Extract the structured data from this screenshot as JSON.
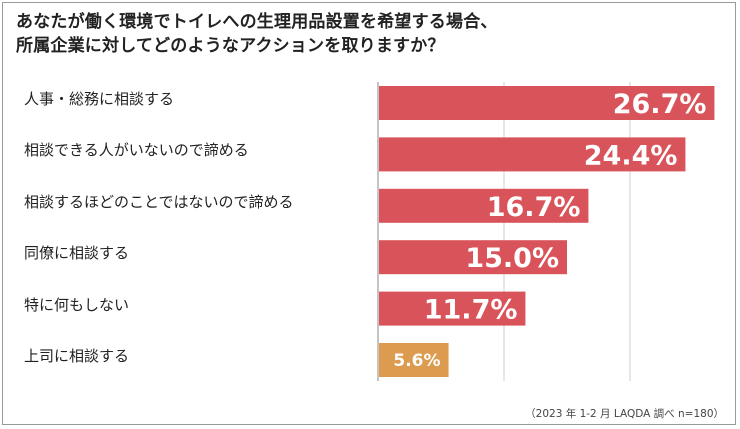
{
  "title": "あなたが働く環境でトイレへの生理用品設置を希望する場合、\n所属企業に対してどのようなアクションを取りますか？",
  "source": "（2023 年 1-2 月 LAQDA 調べ n=180）",
  "colors": {
    "main_bar": "#d9545a",
    "highlight_bar": "#dd9b4f",
    "grid": "#cfcfcf",
    "axis": "#8a8a8a",
    "value_text": "#ffffff"
  },
  "chart_data": {
    "type": "bar",
    "orientation": "horizontal",
    "categories": [
      "人事・総務に相談する",
      "相談できる人がいないので諦める",
      "相談するほどのことではないので諦める",
      "同僚に相談する",
      "特に何もしない",
      "上司に相談する"
    ],
    "values": [
      26.7,
      24.4,
      16.7,
      15.0,
      11.7,
      5.6
    ],
    "value_labels": [
      "26.7%",
      "24.4%",
      "16.7%",
      "15.0%",
      "11.7%",
      "5.6%"
    ],
    "xlim": [
      0,
      30
    ],
    "grid": true,
    "highlight_category": "上司に相談する"
  }
}
